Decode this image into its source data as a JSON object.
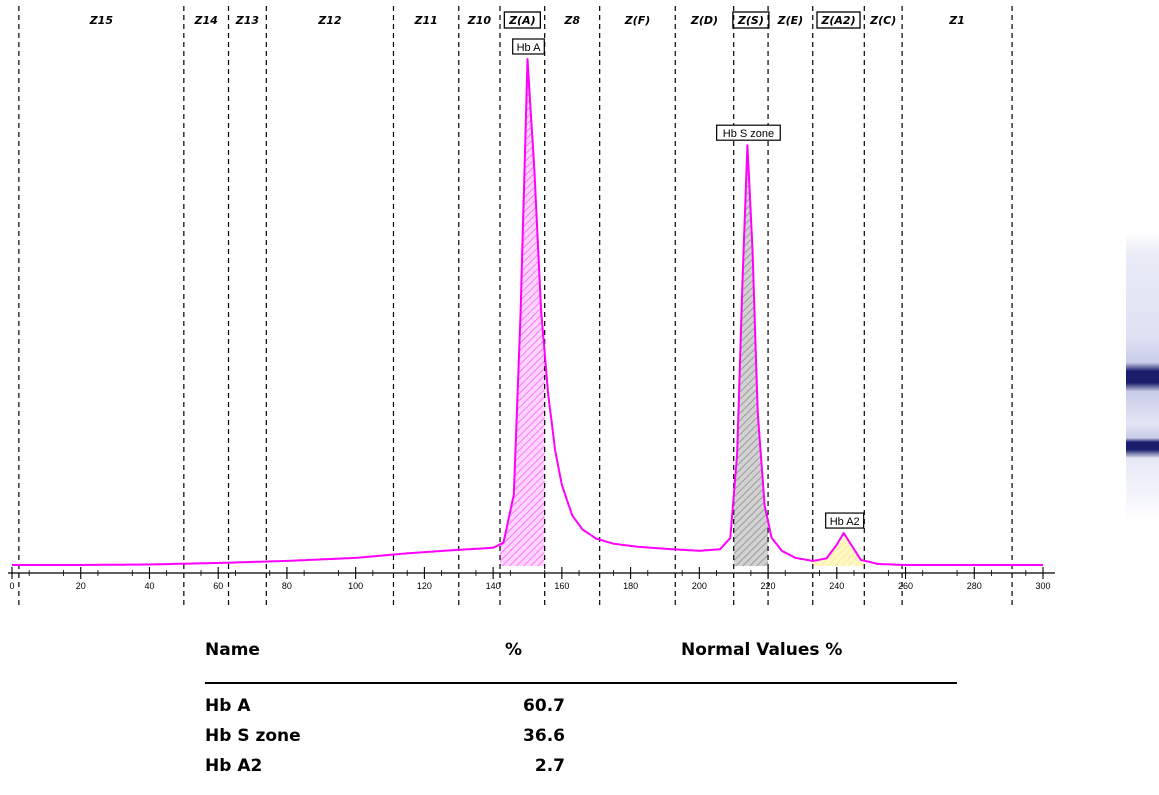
{
  "chart_data": {
    "type": "area",
    "xlim": [
      0,
      300
    ],
    "x_ticks": [
      0,
      20,
      40,
      60,
      80,
      100,
      120,
      140,
      160,
      180,
      200,
      220,
      240,
      260,
      280,
      300
    ],
    "zones": [
      {
        "label": "Z15",
        "boxed": false
      },
      {
        "label": "Z14",
        "boxed": false
      },
      {
        "label": "Z13",
        "boxed": false
      },
      {
        "label": "Z12",
        "boxed": false
      },
      {
        "label": "Z11",
        "boxed": false
      },
      {
        "label": "Z10",
        "boxed": false
      },
      {
        "label": "Z(A)",
        "boxed": true
      },
      {
        "label": "Z8",
        "boxed": false
      },
      {
        "label": "Z(F)",
        "boxed": false
      },
      {
        "label": "Z(D)",
        "boxed": false
      },
      {
        "label": "Z(S)",
        "boxed": true
      },
      {
        "label": "Z(E)",
        "boxed": false
      },
      {
        "label": "Z(A2)",
        "boxed": true
      },
      {
        "label": "Z(C)",
        "boxed": false
      },
      {
        "label": "Z1",
        "boxed": false
      }
    ],
    "zone_boundaries": [
      2,
      50,
      63,
      74,
      111,
      130,
      142,
      155,
      171,
      193,
      210,
      220,
      233,
      248,
      259,
      291
    ],
    "peaks": [
      {
        "label": "Hb A",
        "x": 150,
        "height": 100,
        "color": "#ff00ff"
      },
      {
        "label": "Hb S zone",
        "x": 214,
        "height": 83,
        "color": "#a0a0a0"
      },
      {
        "label": "Hb A2",
        "x": 242,
        "height": 6.5,
        "color": "#fff6b0"
      }
    ],
    "line_color": "#ff00ff",
    "curve": [
      [
        0,
        0.2
      ],
      [
        20,
        0.2
      ],
      [
        40,
        0.3
      ],
      [
        60,
        0.6
      ],
      [
        80,
        1.0
      ],
      [
        100,
        1.6
      ],
      [
        115,
        2.5
      ],
      [
        130,
        3.2
      ],
      [
        140,
        3.6
      ],
      [
        143,
        4.6
      ],
      [
        146,
        14
      ],
      [
        148,
        50
      ],
      [
        150,
        100
      ],
      [
        152,
        78
      ],
      [
        154,
        50
      ],
      [
        156,
        34
      ],
      [
        158,
        23
      ],
      [
        160,
        16
      ],
      [
        163,
        10
      ],
      [
        166,
        7.2
      ],
      [
        170,
        5.4
      ],
      [
        175,
        4.4
      ],
      [
        182,
        3.8
      ],
      [
        190,
        3.4
      ],
      [
        200,
        3.0
      ],
      [
        206,
        3.3
      ],
      [
        209,
        5.5
      ],
      [
        211,
        22
      ],
      [
        212.5,
        55
      ],
      [
        214,
        83
      ],
      [
        215.5,
        62
      ],
      [
        217,
        30
      ],
      [
        219,
        12
      ],
      [
        221,
        5.6
      ],
      [
        224,
        3.0
      ],
      [
        228,
        1.6
      ],
      [
        233,
        1.0
      ],
      [
        237,
        1.5
      ],
      [
        240,
        4.2
      ],
      [
        242,
        6.5
      ],
      [
        244,
        4.4
      ],
      [
        247,
        1.2
      ],
      [
        252,
        0.4
      ],
      [
        260,
        0.2
      ],
      [
        280,
        0.2
      ],
      [
        300,
        0.2
      ]
    ]
  },
  "table": {
    "headers": {
      "name": "Name",
      "pct": "%",
      "normal": "Normal Values %"
    },
    "rows": [
      {
        "name": "Hb A",
        "pct": "60.7"
      },
      {
        "name": "Hb S zone",
        "pct": "36.6"
      },
      {
        "name": "Hb A2",
        "pct": "2.7"
      }
    ]
  },
  "gel_strip": {
    "band_color": "#1a1e6b",
    "background": "#e9ebf7"
  }
}
